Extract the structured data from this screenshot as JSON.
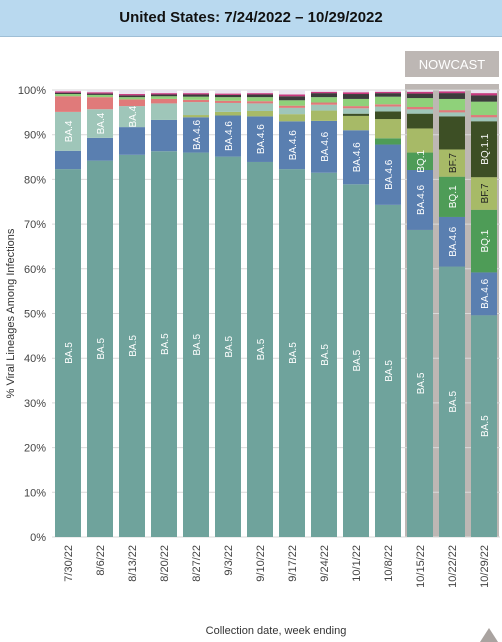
{
  "header": {
    "title": "United States: 7/24/2022 – 10/29/2022"
  },
  "chart_data": {
    "type": "stacked-bar",
    "title": "United States: 7/24/2022 – 10/29/2022",
    "xlabel": "Collection date, week ending",
    "ylabel": "% Viral Lineages Among Infections",
    "ylim": [
      0,
      100
    ],
    "y_ticks": [
      "0%",
      "10%",
      "20%",
      "30%",
      "40%",
      "50%",
      "60%",
      "70%",
      "80%",
      "90%",
      "100%"
    ],
    "grid": true,
    "nowcast_label": "NOWCAST",
    "nowcast_categories": [
      "10/15/22",
      "10/22/22",
      "10/29/22"
    ],
    "categories": [
      "7/30/22",
      "8/6/22",
      "8/13/22",
      "8/20/22",
      "8/27/22",
      "9/3/22",
      "9/10/22",
      "9/17/22",
      "9/24/22",
      "10/1/22",
      "10/8/22",
      "10/15/22",
      "10/22/22",
      "10/29/22"
    ],
    "colors": {
      "BA.5": "#6fa39c",
      "BA.4.6": "#5a7fb0",
      "BQ.1": "#4e9c57",
      "BF.7": "#a7ba67",
      "BQ.1.1": "#3d4f25",
      "BA.4": "#9fc6b9",
      "Other-red": "#e07a7a",
      "Other-green": "#8fd17a",
      "Other-dark": "#3c3c3c",
      "Other-magenta": "#c8387f",
      "Other-light": "#e9e4ef"
    },
    "series": [
      {
        "name": "BA.5",
        "values": [
          82.3,
          84.2,
          85.5,
          86.3,
          86.0,
          85.1,
          83.9,
          82.3,
          81.5,
          78.9,
          74.3,
          68.7,
          60.5,
          49.6
        ]
      },
      {
        "name": "BA.4.6",
        "values": [
          4.1,
          5.1,
          6.2,
          7.0,
          7.9,
          9.2,
          10.2,
          10.7,
          11.6,
          12.1,
          13.5,
          13.4,
          11.1,
          9.6
        ]
      },
      {
        "name": "BQ.1",
        "values": [
          0,
          0,
          0,
          0,
          0,
          0,
          0,
          0,
          0,
          0,
          1.4,
          3.9,
          9.0,
          14.0
        ]
      },
      {
        "name": "BF.7",
        "values": [
          0,
          0,
          0,
          0,
          0.5,
          0.8,
          1.2,
          1.6,
          2.3,
          3.2,
          4.3,
          5.4,
          6.1,
          7.3
        ]
      },
      {
        "name": "BQ.1.1",
        "values": [
          0,
          0,
          0,
          0,
          0,
          0,
          0,
          0,
          0,
          0.5,
          1.7,
          3.3,
          7.4,
          12.5
        ]
      },
      {
        "name": "BA.4",
        "values": [
          8.7,
          6.4,
          4.7,
          3.7,
          2.9,
          2.0,
          1.7,
          1.4,
          1.3,
          1.2,
          1.1,
          1.0,
          0.9,
          0.9
        ]
      },
      {
        "name": "Other-red",
        "values": [
          3.5,
          2.7,
          1.5,
          1.0,
          0.5,
          0.5,
          0.5,
          0.5,
          0.5,
          0.5,
          0.5,
          0.5,
          0.5,
          0.5
        ]
      },
      {
        "name": "Other-green",
        "values": [
          0.5,
          0.5,
          0.5,
          0.6,
          0.7,
          0.8,
          0.9,
          1.2,
          1.2,
          1.6,
          1.7,
          2.0,
          2.5,
          3.0
        ]
      },
      {
        "name": "Other-dark",
        "values": [
          0.3,
          0.3,
          0.4,
          0.4,
          0.5,
          0.5,
          0.6,
          0.9,
          0.9,
          1.1,
          0.8,
          1.0,
          1.3,
          1.4
        ]
      },
      {
        "name": "Other-magenta",
        "values": [
          0.3,
          0.3,
          0.3,
          0.3,
          0.3,
          0.3,
          0.3,
          0.4,
          0.3,
          0.4,
          0.3,
          0.4,
          0.4,
          0.5
        ]
      },
      {
        "name": "Other-light",
        "values": [
          0.3,
          0.5,
          0.9,
          0.7,
          0.7,
          0.8,
          0.7,
          1.0,
          0.4,
          0.5,
          0.4,
          0.4,
          0.3,
          0.7
        ]
      }
    ],
    "bar_labels": [
      [
        "BA.4",
        "BA.5"
      ],
      [
        "BA.4",
        "BA.5"
      ],
      [
        "BA.4",
        "BA.5"
      ],
      [
        "BA.5"
      ],
      [
        "BA.4.6",
        "BA.5"
      ],
      [
        "BA.4.6",
        "BA.5"
      ],
      [
        "BA.4.6",
        "BA.5"
      ],
      [
        "BA.4.6",
        "BA.5"
      ],
      [
        "BA.4.6",
        "BA.5"
      ],
      [
        "BA.4.6",
        "BA.5"
      ],
      [
        "BA.4.6",
        "BA.5"
      ],
      [
        "BA.4.6",
        "BQ.1",
        "BA.5"
      ],
      [
        "BA.4.6",
        "BQ.1",
        "BF.7",
        "BA.5"
      ],
      [
        "BA.4.6",
        "BQ.1",
        "BF.7",
        "BQ.1.1",
        "BA.5"
      ]
    ]
  }
}
